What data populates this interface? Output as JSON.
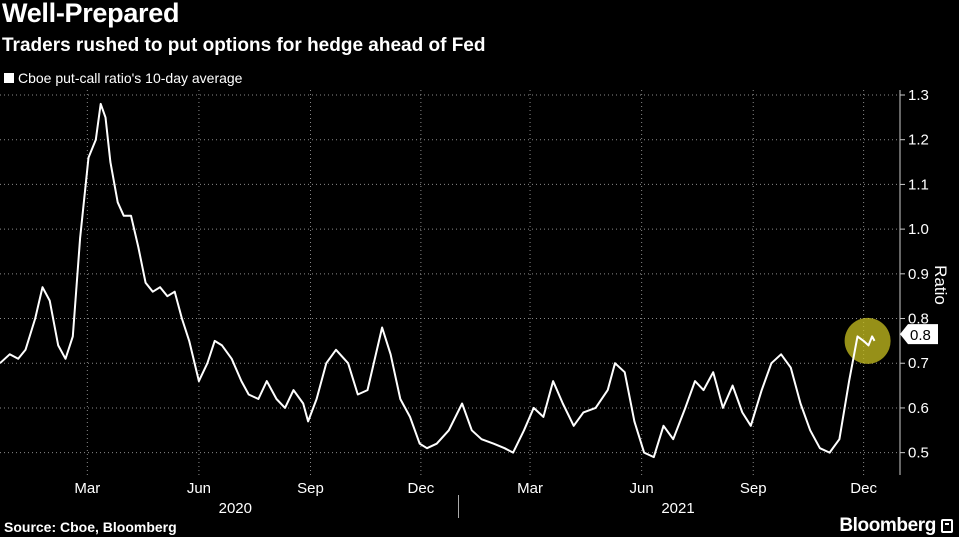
{
  "header": {
    "title": "Well-Prepared",
    "subtitle": "Traders rushed to put options for hedge ahead of Fed"
  },
  "footer": {
    "source": "Source: Cboe, Bloomberg",
    "brand": "Bloomberg"
  },
  "chart_data": {
    "type": "line",
    "legend_position": "top-left",
    "grid": true,
    "ylabel": "Ratio",
    "ylim": [
      0.45,
      1.3
    ],
    "y_ticks": [
      0.5,
      0.6,
      0.7,
      0.8,
      0.9,
      1.0,
      1.1,
      1.2,
      1.3
    ],
    "y_tick_labels": [
      "0.5",
      "0.6",
      "0.7",
      "0.8",
      "0.9",
      "1.0",
      "1.1",
      "1.2",
      "1.3"
    ],
    "x_range": [
      "2019-12-20",
      "2021-12-31"
    ],
    "x_ticks": [
      "2020-03-01",
      "2020-06-01",
      "2020-09-01",
      "2020-12-01",
      "2021-03-01",
      "2021-06-01",
      "2021-09-01",
      "2021-12-01"
    ],
    "x_tick_labels": [
      "Mar",
      "Jun",
      "Sep",
      "Dec",
      "Mar",
      "Jun",
      "Sep",
      "Dec"
    ],
    "year_labels": [
      {
        "label": "2020",
        "center": "2020-07-01"
      },
      {
        "label": "2021",
        "center": "2021-07-01"
      }
    ],
    "year_divider": "2021-01-01",
    "last_value_label": "0.8",
    "series": [
      {
        "name": "Cboe put-call ratio's 10-day average",
        "color": "#ffffff",
        "points": [
          [
            "2019-12-20",
            0.7
          ],
          [
            "2019-12-28",
            0.72
          ],
          [
            "2020-01-04",
            0.71
          ],
          [
            "2020-01-10",
            0.73
          ],
          [
            "2020-01-18",
            0.8
          ],
          [
            "2020-01-24",
            0.87
          ],
          [
            "2020-01-30",
            0.84
          ],
          [
            "2020-02-06",
            0.74
          ],
          [
            "2020-02-12",
            0.71
          ],
          [
            "2020-02-18",
            0.76
          ],
          [
            "2020-02-24",
            0.98
          ],
          [
            "2020-03-02",
            1.16
          ],
          [
            "2020-03-08",
            1.2
          ],
          [
            "2020-03-12",
            1.28
          ],
          [
            "2020-03-16",
            1.25
          ],
          [
            "2020-03-20",
            1.15
          ],
          [
            "2020-03-26",
            1.06
          ],
          [
            "2020-03-31",
            1.03
          ],
          [
            "2020-04-06",
            1.03
          ],
          [
            "2020-04-12",
            0.96
          ],
          [
            "2020-04-18",
            0.88
          ],
          [
            "2020-04-24",
            0.86
          ],
          [
            "2020-04-30",
            0.87
          ],
          [
            "2020-05-06",
            0.85
          ],
          [
            "2020-05-12",
            0.86
          ],
          [
            "2020-05-18",
            0.8
          ],
          [
            "2020-05-24",
            0.75
          ],
          [
            "2020-06-01",
            0.66
          ],
          [
            "2020-06-08",
            0.7
          ],
          [
            "2020-06-14",
            0.75
          ],
          [
            "2020-06-20",
            0.74
          ],
          [
            "2020-06-28",
            0.71
          ],
          [
            "2020-07-06",
            0.66
          ],
          [
            "2020-07-12",
            0.63
          ],
          [
            "2020-07-20",
            0.62
          ],
          [
            "2020-07-27",
            0.66
          ],
          [
            "2020-08-04",
            0.62
          ],
          [
            "2020-08-11",
            0.6
          ],
          [
            "2020-08-18",
            0.64
          ],
          [
            "2020-08-26",
            0.61
          ],
          [
            "2020-08-30",
            0.57
          ],
          [
            "2020-09-06",
            0.62
          ],
          [
            "2020-09-14",
            0.7
          ],
          [
            "2020-09-22",
            0.73
          ],
          [
            "2020-10-02",
            0.7
          ],
          [
            "2020-10-10",
            0.63
          ],
          [
            "2020-10-18",
            0.64
          ],
          [
            "2020-10-30",
            0.78
          ],
          [
            "2020-11-06",
            0.72
          ],
          [
            "2020-11-14",
            0.62
          ],
          [
            "2020-11-22",
            0.58
          ],
          [
            "2020-11-30",
            0.52
          ],
          [
            "2020-12-06",
            0.51
          ],
          [
            "2020-12-14",
            0.52
          ],
          [
            "2020-12-24",
            0.55
          ],
          [
            "2021-01-04",
            0.61
          ],
          [
            "2021-01-12",
            0.55
          ],
          [
            "2021-01-20",
            0.53
          ],
          [
            "2021-01-30",
            0.52
          ],
          [
            "2021-02-08",
            0.51
          ],
          [
            "2021-02-15",
            0.5
          ],
          [
            "2021-02-24",
            0.55
          ],
          [
            "2021-03-04",
            0.6
          ],
          [
            "2021-03-12",
            0.58
          ],
          [
            "2021-03-20",
            0.66
          ],
          [
            "2021-03-28",
            0.61
          ],
          [
            "2021-04-06",
            0.56
          ],
          [
            "2021-04-14",
            0.59
          ],
          [
            "2021-04-24",
            0.6
          ],
          [
            "2021-05-04",
            0.64
          ],
          [
            "2021-05-10",
            0.7
          ],
          [
            "2021-05-18",
            0.68
          ],
          [
            "2021-05-26",
            0.57
          ],
          [
            "2021-06-03",
            0.5
          ],
          [
            "2021-06-11",
            0.49
          ],
          [
            "2021-06-19",
            0.56
          ],
          [
            "2021-06-27",
            0.53
          ],
          [
            "2021-07-07",
            0.6
          ],
          [
            "2021-07-15",
            0.66
          ],
          [
            "2021-07-22",
            0.64
          ],
          [
            "2021-07-30",
            0.68
          ],
          [
            "2021-08-07",
            0.6
          ],
          [
            "2021-08-15",
            0.65
          ],
          [
            "2021-08-23",
            0.59
          ],
          [
            "2021-08-30",
            0.56
          ],
          [
            "2021-09-08",
            0.64
          ],
          [
            "2021-09-16",
            0.7
          ],
          [
            "2021-09-24",
            0.72
          ],
          [
            "2021-10-02",
            0.69
          ],
          [
            "2021-10-10",
            0.61
          ],
          [
            "2021-10-18",
            0.55
          ],
          [
            "2021-10-26",
            0.51
          ],
          [
            "2021-11-03",
            0.5
          ],
          [
            "2021-11-11",
            0.53
          ],
          [
            "2021-11-19",
            0.66
          ],
          [
            "2021-11-26",
            0.76
          ],
          [
            "2021-12-01",
            0.75
          ],
          [
            "2021-12-05",
            0.74
          ],
          [
            "2021-12-08",
            0.76
          ],
          [
            "2021-12-10",
            0.75
          ]
        ]
      }
    ],
    "highlight_color": "#c8c020"
  }
}
